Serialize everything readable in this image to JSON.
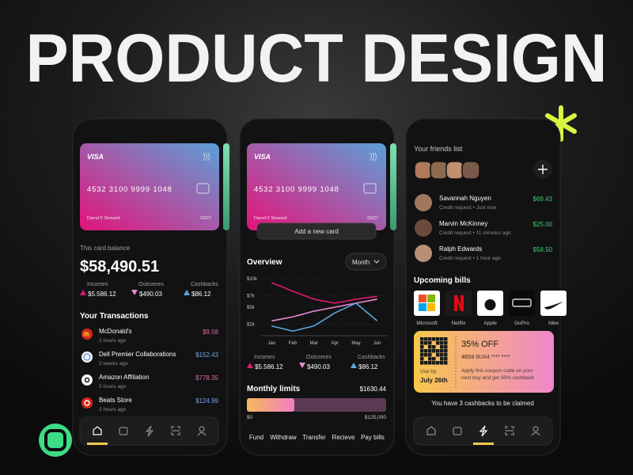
{
  "header": {
    "title": "PRODUCT DESIGN"
  },
  "card": {
    "brand": "VISA",
    "number": "4532 3100 9999 1048",
    "holder": "Darrel F Steward",
    "expiry": "03/27"
  },
  "wallet": {
    "balance_label": "This card balance",
    "balance": "$58,490.51",
    "transactions_title": "Your Transactions",
    "transactions": [
      {
        "name": "McDonald's",
        "time": "2 hours ago",
        "amount": "$9.58",
        "color": "#e46aa6"
      },
      {
        "name": "Dell Premier Collaborations",
        "time": "2 weeks ago",
        "amount": "$152.43",
        "color": "#6fa8e8"
      },
      {
        "name": "Amazon Affiliation",
        "time": "5 hours ago",
        "amount": "$778.35",
        "color": "#e46aa6"
      },
      {
        "name": "Beats Store",
        "time": "3 hours ago",
        "amount": "$124.99",
        "color": "#6fa8e8"
      }
    ]
  },
  "overview": {
    "add_card": "Add a new card",
    "title": "Overview",
    "period": "Month",
    "chart": {
      "type": "line",
      "categories": [
        "Jan",
        "Feb",
        "Mar",
        "Apr",
        "May",
        "Jun"
      ],
      "ylim": [
        0,
        10000
      ],
      "yticks": [
        {
          "value": 10000,
          "label": "$10k"
        },
        {
          "value": 7000,
          "label": "$7k"
        },
        {
          "value": 5000,
          "label": "$5k"
        },
        {
          "value": 2000,
          "label": "$2k"
        }
      ],
      "grid": true,
      "series": [
        {
          "name": "Incomes",
          "stat": "$5.586.12",
          "color": "#e0186c",
          "values": [
            9300,
            7800,
            6400,
            5700,
            6400,
            6900
          ]
        },
        {
          "name": "Outcomes",
          "stat": "$490.03",
          "color": "#e88ad0",
          "values": [
            2600,
            3300,
            4300,
            5000,
            5700,
            6400
          ]
        },
        {
          "name": "Cashbacks",
          "stat": "$86.12",
          "color": "#5aa8e0",
          "values": [
            1700,
            800,
            1700,
            4000,
            5700,
            2600
          ]
        }
      ]
    },
    "limits_title": "Monthly limits",
    "limits_amount": "$1630.44",
    "limits_min": "$0",
    "limits_max": "$125,000",
    "actions": [
      "Fund",
      "Withdraw",
      "Transfer",
      "Recieve",
      "Pay bills"
    ]
  },
  "social": {
    "friends_title": "Your friends list",
    "friends": [
      {
        "name": "Savannah Nguyen",
        "note": "Credit request • Just now",
        "amount": "$69.43"
      },
      {
        "name": "Marvin McKinney",
        "note": "Credit request • 11 minutes ago",
        "amount": "$25.00"
      },
      {
        "name": "Ralph Edwards",
        "note": "Credit request • 1 hour ago",
        "amount": "$58.50"
      }
    ],
    "bills_title": "Upcoming bills",
    "bills": [
      "Microsoft",
      "Netflix",
      "Apple",
      "GoPro",
      "Nike"
    ],
    "coupon": {
      "headline": "35% OFF",
      "code": "4B58 9UX4 **** ****",
      "use_by_label": "Use by",
      "use_by": "July 26th",
      "description_lines": [
        "Apply this coupon code on your",
        "next buy and get 30% cashback"
      ]
    },
    "cashbacks_note": "You have 3 cashbacks to be claimed"
  }
}
